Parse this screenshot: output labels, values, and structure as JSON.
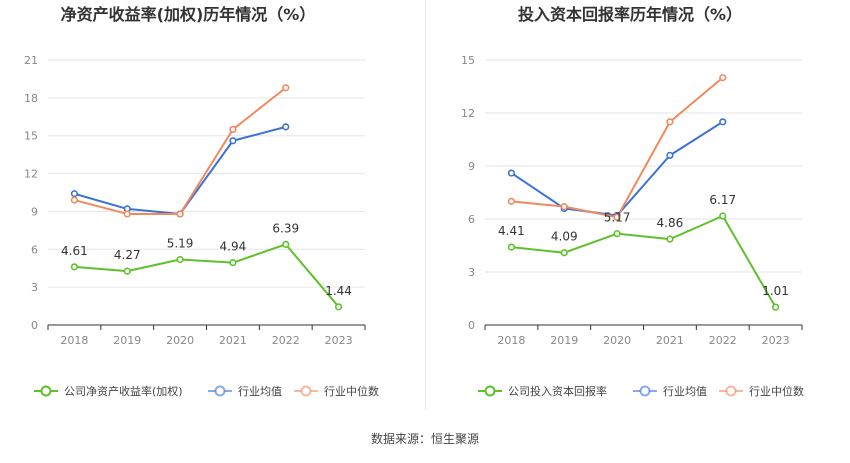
{
  "source_text": "数据来源：恒生聚源",
  "colors": {
    "company": "#5ec12a",
    "average": "#3a72d8",
    "median": "#f08a5d",
    "grid": "#e6e6e6",
    "axis": "#333333",
    "tick_text": "#888888",
    "label_text": "#333333"
  },
  "chart_data": [
    {
      "type": "line",
      "title": "净资产收益率(加权)历年情况（%）",
      "xlabel": "",
      "ylabel": "",
      "categories": [
        "2018",
        "2019",
        "2020",
        "2021",
        "2022",
        "2023"
      ],
      "yticks": [
        "0",
        "3",
        "6",
        "9",
        "12",
        "15",
        "18",
        "21"
      ],
      "ylim": [
        0,
        21
      ],
      "grid": true,
      "legend_position": "bottom",
      "series": [
        {
          "name": "公司净资产收益率(加权)",
          "color_key": "company",
          "values": [
            4.61,
            4.27,
            5.19,
            4.94,
            6.39,
            1.44
          ],
          "labels": [
            "4.61",
            "4.27",
            "5.19",
            "4.94",
            "6.39",
            "1.44"
          ]
        },
        {
          "name": "行业均值",
          "color_key": "average",
          "values": [
            10.4,
            9.2,
            8.8,
            14.6,
            15.7,
            null
          ]
        },
        {
          "name": "行业中位数",
          "color_key": "median",
          "values": [
            9.9,
            8.8,
            8.8,
            15.5,
            18.8,
            null
          ]
        }
      ]
    },
    {
      "type": "line",
      "title": "投入资本回报率历年情况（%）",
      "xlabel": "",
      "ylabel": "",
      "categories": [
        "2018",
        "2019",
        "2020",
        "2021",
        "2022",
        "2023"
      ],
      "yticks": [
        "0",
        "3",
        "6",
        "9",
        "12",
        "15"
      ],
      "ylim": [
        0,
        15
      ],
      "grid": true,
      "legend_position": "bottom",
      "series": [
        {
          "name": "公司投入资本回报率",
          "color_key": "company",
          "values": [
            4.41,
            4.09,
            5.17,
            4.86,
            6.17,
            1.01
          ],
          "labels": [
            "4.41",
            "4.09",
            "5.17",
            "4.86",
            "6.17",
            "1.01"
          ]
        },
        {
          "name": "行业均值",
          "color_key": "average",
          "values": [
            8.6,
            6.6,
            6.2,
            9.6,
            11.5,
            null
          ]
        },
        {
          "name": "行业中位数",
          "color_key": "median",
          "values": [
            7.0,
            6.7,
            6.1,
            11.5,
            14.0,
            null
          ]
        }
      ]
    }
  ]
}
